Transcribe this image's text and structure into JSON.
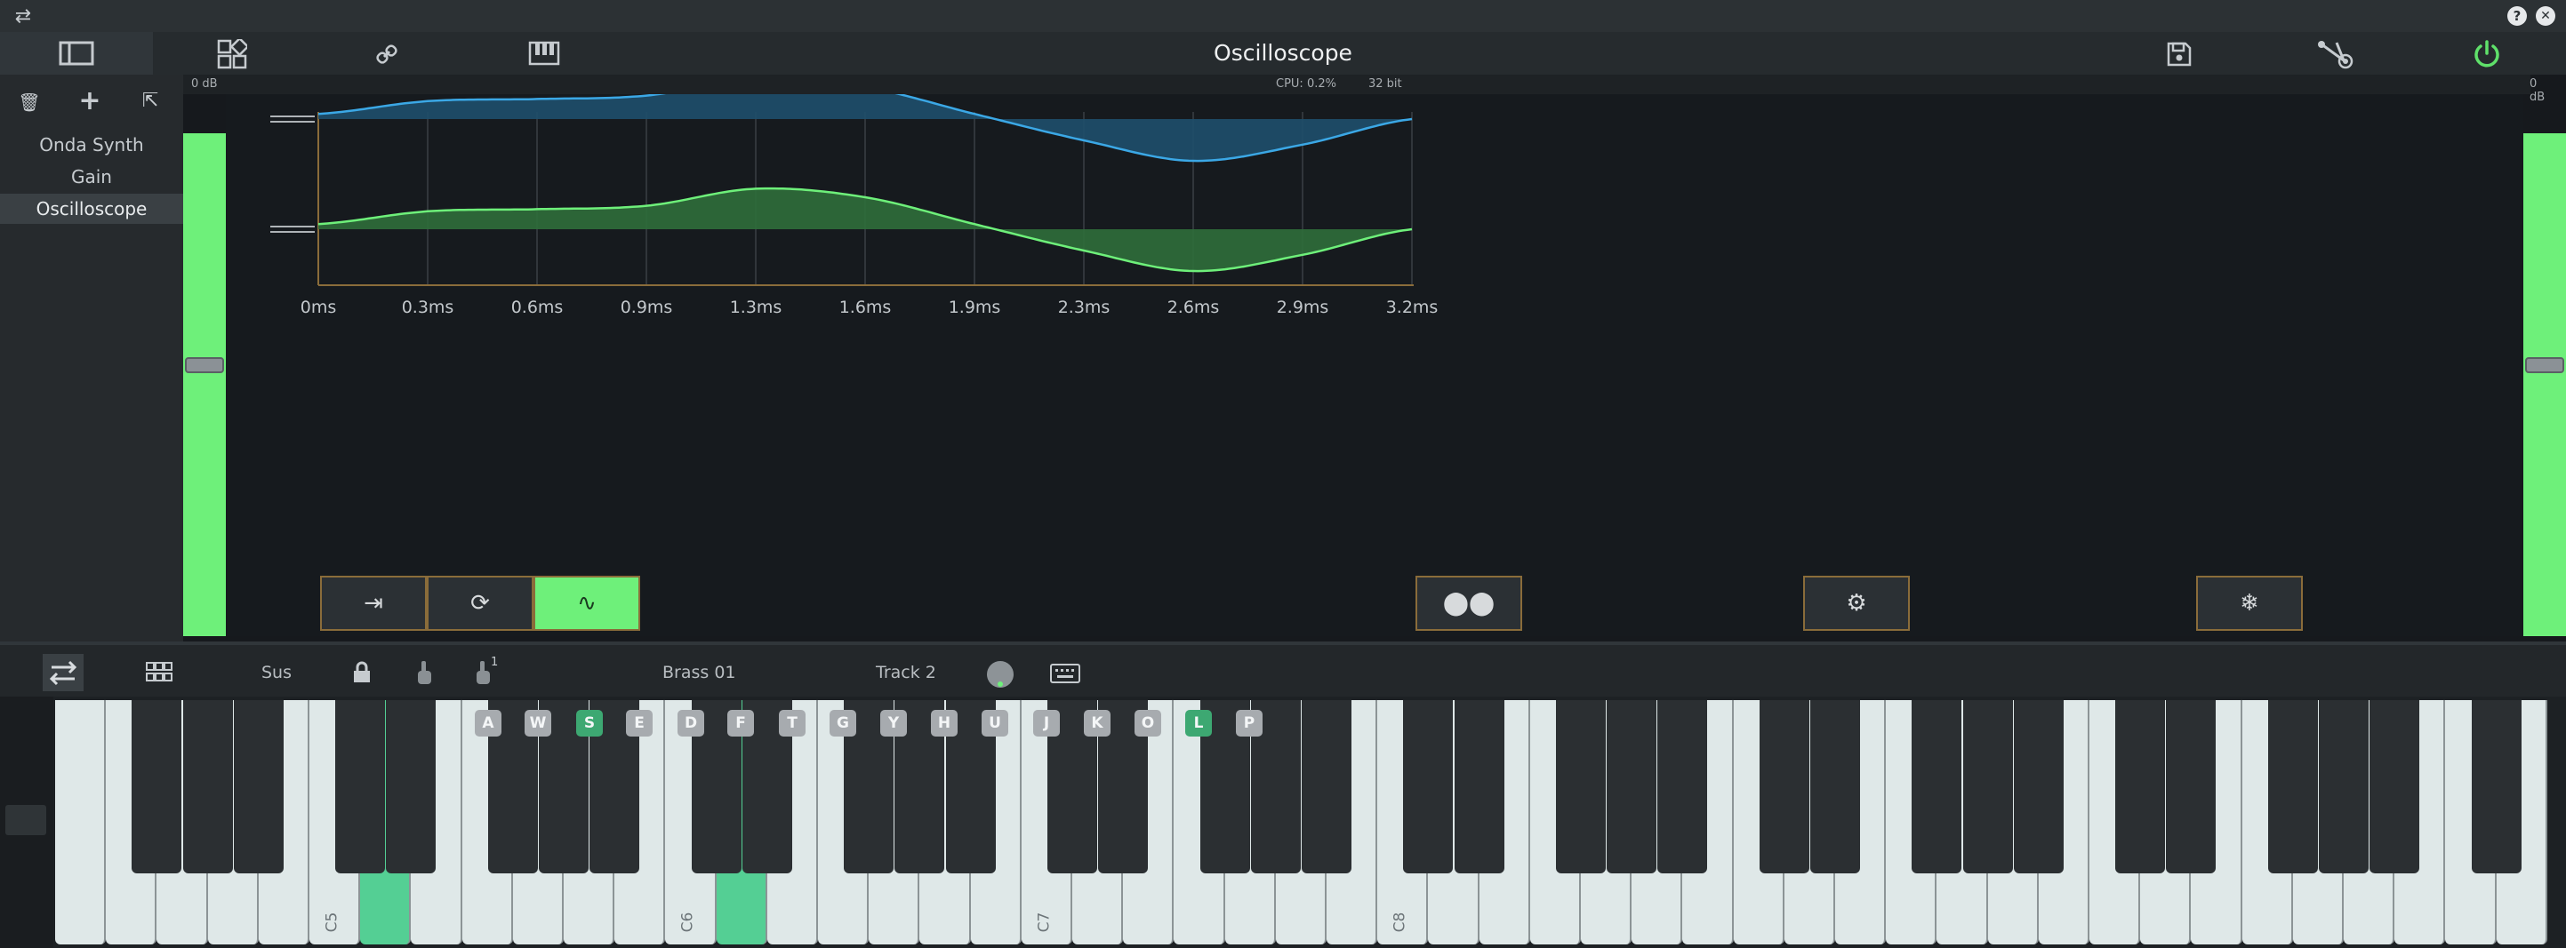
{
  "window": {
    "title": "Oscilloscope",
    "swap_glyph": "⇄",
    "help_glyph": "?",
    "close_glyph": "✕"
  },
  "toolbar": {
    "icons": [
      "sidebar-toggle-icon",
      "layout-icon",
      "link-icon",
      "piano-icon",
      "save-icon",
      "routing-icon",
      "power-icon"
    ]
  },
  "status": {
    "left_db": "0 dB",
    "cpu": "CPU: 0.2%",
    "bits": "32 bit",
    "right_db": "0 dB"
  },
  "sidebar": {
    "actions": {
      "delete_glyph": "🗑",
      "add_glyph": "+",
      "export_glyph": "⇱"
    },
    "items": [
      {
        "label": "Onda Synth",
        "selected": false
      },
      {
        "label": "Gain",
        "selected": false
      },
      {
        "label": "Oscilloscope",
        "selected": true
      }
    ]
  },
  "meters": {
    "left_level": 1.0,
    "right_level": 1.0,
    "left_handle": 0.5,
    "right_handle": 0.5
  },
  "scope": {
    "time_ticks": [
      "0ms",
      "0.3ms",
      "0.6ms",
      "0.9ms",
      "1.3ms",
      "1.6ms",
      "1.9ms",
      "2.3ms",
      "2.6ms",
      "2.9ms",
      "3.2ms"
    ],
    "channel_colors": [
      "#3ba8e6",
      "#6ef07a"
    ],
    "fill_colors": [
      "#1e4f6c",
      "#2f6e3a"
    ],
    "axis_color": "#8a6c3a",
    "wave": [
      [
        0,
        0.12
      ],
      [
        0.1,
        0.42
      ],
      [
        0.2,
        0.47
      ],
      [
        0.3,
        0.55
      ],
      [
        0.4,
        0.95
      ],
      [
        0.5,
        0.75
      ],
      [
        0.6,
        0.12
      ],
      [
        0.7,
        -0.5
      ],
      [
        0.8,
        -0.98
      ],
      [
        0.9,
        -0.6
      ],
      [
        1.0,
        0.0
      ]
    ],
    "buttons": [
      {
        "name": "trigger-button",
        "glyph": "⇥",
        "active": false
      },
      {
        "name": "cycle-button",
        "glyph": "⟳",
        "active": false
      },
      {
        "name": "wave-button",
        "glyph": "∿",
        "active": true
      },
      {
        "name": "stereo-button",
        "glyph": "⬤⬤",
        "active": false
      },
      {
        "name": "settings-button",
        "glyph": "⚙",
        "active": false
      },
      {
        "name": "freeze-button",
        "glyph": "❄",
        "active": false
      }
    ]
  },
  "keyboard_bar": {
    "sus": "Sus",
    "preset": "Brass 01",
    "track": "Track 2",
    "finger_count": "1"
  },
  "keyboard": {
    "white_keys_pressed": [
      6,
      13
    ],
    "labels": [
      {
        "key": "A",
        "on": false
      },
      {
        "key": "W",
        "on": false
      },
      {
        "key": "S",
        "on": true
      },
      {
        "key": "E",
        "on": false
      },
      {
        "key": "D",
        "on": false
      },
      {
        "key": "F",
        "on": false
      },
      {
        "key": "T",
        "on": false
      },
      {
        "key": "G",
        "on": false
      },
      {
        "key": "Y",
        "on": false
      },
      {
        "key": "H",
        "on": false
      },
      {
        "key": "U",
        "on": false
      },
      {
        "key": "J",
        "on": false
      },
      {
        "key": "K",
        "on": false
      },
      {
        "key": "O",
        "on": false
      },
      {
        "key": "L",
        "on": true
      },
      {
        "key": "P",
        "on": false
      }
    ],
    "octaves": [
      "C5",
      "C6",
      "C7",
      "C8"
    ]
  }
}
